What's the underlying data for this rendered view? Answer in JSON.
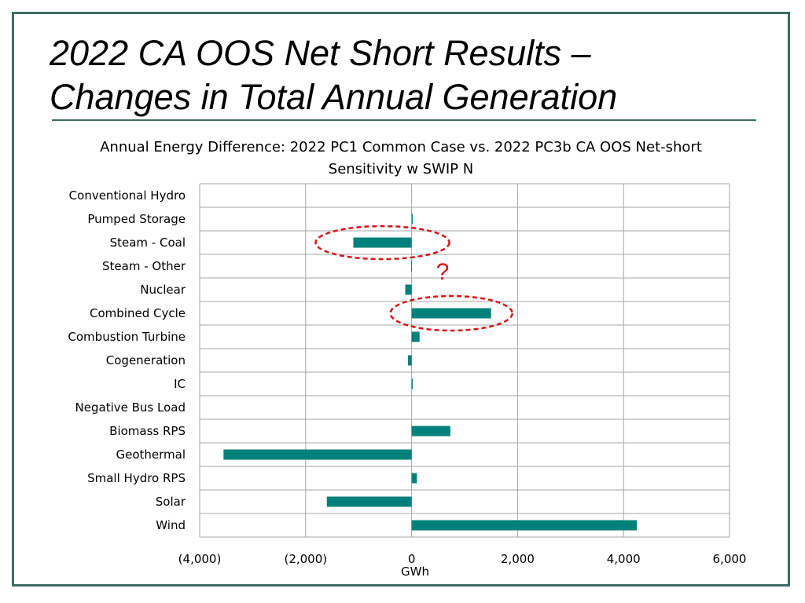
{
  "slide": {
    "title_line1": "2022 CA OOS Net Short Results –",
    "title_line2": "Changes in Total Annual Generation"
  },
  "chart_data": {
    "type": "bar",
    "orientation": "horizontal",
    "title": "Annual Energy Difference: 2022 PC1 Common Case vs. 2022 PC3b CA OOS Net-short Sensitivity w SWIP N",
    "xlabel": "GWh",
    "ylabel": "",
    "xlim": [
      -4000,
      6000
    ],
    "x_ticks": [
      -4000,
      -2000,
      0,
      2000,
      4000,
      6000
    ],
    "x_tick_labels": [
      "(4,000)",
      "(2,000)",
      "0",
      "2,000",
      "4,000",
      "6,000"
    ],
    "grid": true,
    "legend": "none",
    "bar_color": "#00807a",
    "categories": [
      "Conventional Hydro",
      "Pumped Storage",
      "Steam - Coal",
      "Steam - Other",
      "Nuclear",
      "Combined Cycle",
      "Combustion Turbine",
      "Cogeneration",
      "IC",
      "Negative Bus Load",
      "Biomass RPS",
      "Geothermal",
      "Small Hydro RPS",
      "Solar",
      "Wind"
    ],
    "values": [
      0,
      20,
      -1100,
      -10,
      -120,
      1500,
      150,
      -70,
      20,
      0,
      730,
      -3550,
      100,
      -1600,
      4250
    ],
    "annotations": [
      {
        "kind": "dashed-ellipse",
        "category": "Steam - Coal",
        "color": "#dd1111"
      },
      {
        "kind": "dashed-ellipse",
        "category": "Combined Cycle",
        "color": "#dd1111"
      },
      {
        "kind": "text",
        "text": "?",
        "color": "#dd1111"
      }
    ]
  }
}
